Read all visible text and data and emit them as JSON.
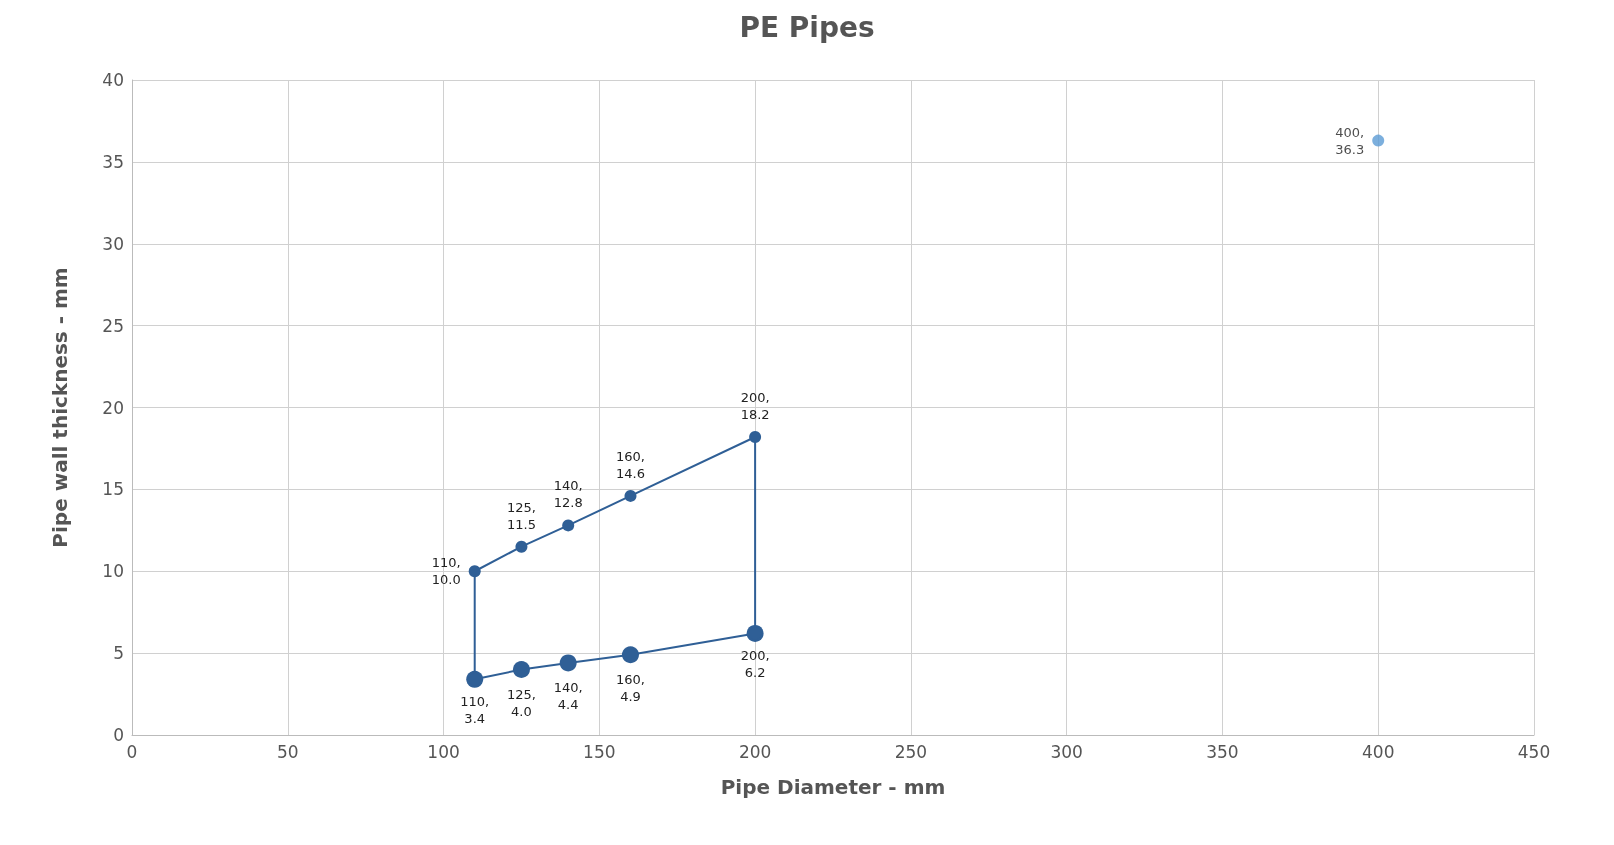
{
  "chart_data": {
    "type": "line",
    "title": "PE Pipes",
    "xlabel": "Pipe Diameter - mm",
    "ylabel": "Pipe wall thickness - mm",
    "xlim": [
      0,
      450
    ],
    "xticks": [
      0,
      50,
      100,
      150,
      200,
      250,
      300,
      350,
      400,
      450
    ],
    "ylim": [
      0,
      40
    ],
    "yticks": [
      0,
      5,
      10,
      15,
      20,
      25,
      30,
      35,
      40
    ],
    "grid": true,
    "marker": "circle",
    "line_style": "solid",
    "series": [
      {
        "color": "#2f5f96",
        "x": [
          110,
          110,
          125,
          140,
          160,
          200,
          200
        ],
        "values": [
          3.4,
          10.0,
          11.5,
          12.8,
          14.6,
          18.2,
          6.2
        ],
        "value_labels": [
          "110, 3.4",
          "110, 10.0",
          "125, 11.5",
          "140, 12.8",
          "160, 14.6",
          "200, 18.2",
          "200, 6.2"
        ]
      },
      {
        "color": "#2f5f96",
        "x": [
          110,
          125,
          140,
          160,
          200
        ],
        "values": [
          3.4,
          4.0,
          4.4,
          4.9,
          6.2
        ],
        "value_labels": [
          null,
          "125, 4.0",
          "140, 4.4",
          "160, 4.9",
          null
        ]
      },
      {
        "type": "scatter",
        "color": "#5b9bd5",
        "x": [
          400
        ],
        "values": [
          36.3
        ],
        "value_labels": [
          "400, 36.3"
        ]
      }
    ]
  }
}
